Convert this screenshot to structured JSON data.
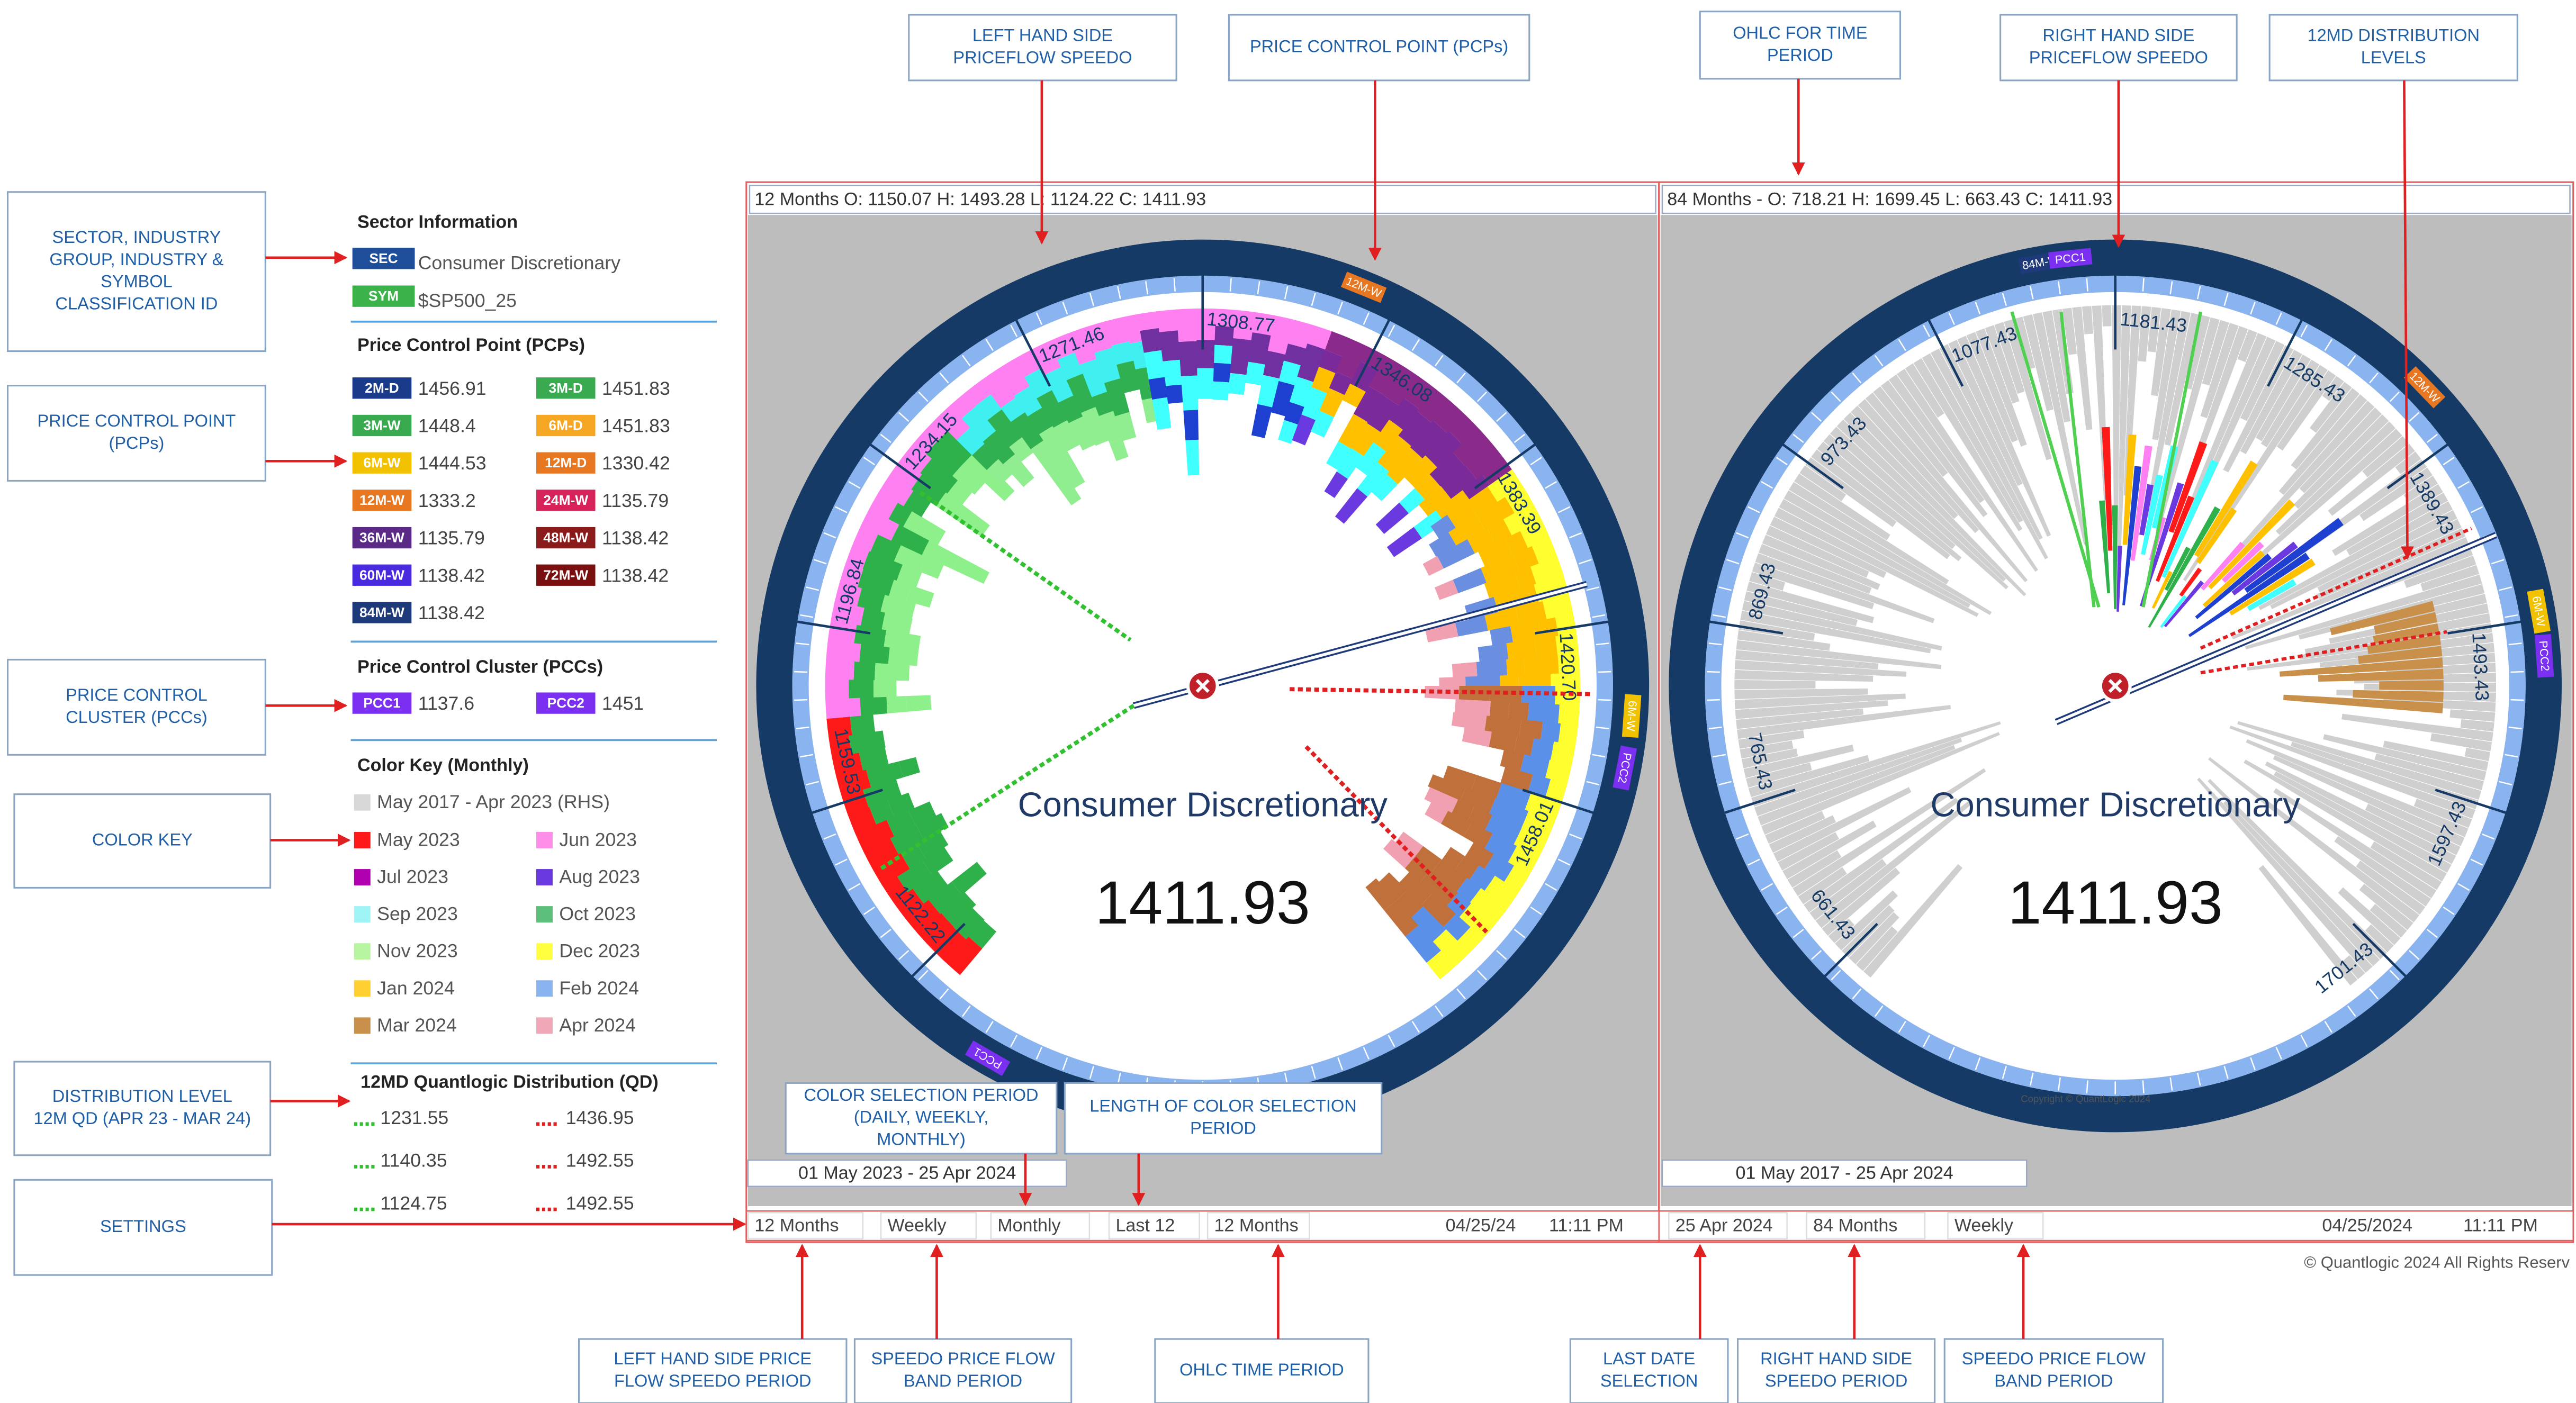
{
  "callouts": [
    {
      "lines": [
        "LEFT HAND SIDE",
        "PRICEFLOW SPEEDO"
      ]
    },
    {
      "lines": [
        "PRICE CONTROL POINT (PCPs)"
      ]
    },
    {
      "lines": [
        "OHLC FOR TIME",
        "PERIOD"
      ]
    },
    {
      "lines": [
        "RIGHT HAND SIDE",
        "PRICEFLOW SPEEDO"
      ]
    },
    {
      "lines": [
        "12MD DISTRIBUTION",
        "LEVELS"
      ]
    },
    {
      "lines": [
        "SECTOR,  INDUSTRY",
        "GROUP, INDUSTRY &",
        "SYMBOL",
        "CLASSIFICATION ID"
      ]
    },
    {
      "lines": [
        "PRICE CONTROL POINT",
        "(PCPs)"
      ]
    },
    {
      "lines": [
        "PRICE CONTROL",
        "CLUSTER (PCCs)"
      ]
    },
    {
      "lines": [
        "COLOR KEY"
      ]
    },
    {
      "lines": [
        "DISTRIBUTION LEVEL",
        "12M QD (APR 23 - MAR 24)"
      ]
    },
    {
      "lines": [
        "SETTINGS"
      ]
    },
    {
      "lines": [
        "COLOR SELECTION PERIOD",
        "(DAILY, WEEKLY,",
        "MONTHLY)"
      ]
    },
    {
      "lines": [
        "LENGTH OF COLOR SELECTION",
        "PERIOD"
      ]
    },
    {
      "lines": [
        "LEFT HAND SIDE PRICE",
        "FLOW SPEEDO PERIOD"
      ]
    },
    {
      "lines": [
        "SPEEDO PRICE FLOW",
        "BAND PERIOD"
      ]
    },
    {
      "lines": [
        "OHLC TIME PERIOD"
      ]
    },
    {
      "lines": [
        "LAST DATE",
        "SELECTION"
      ]
    },
    {
      "lines": [
        "RIGHT HAND SIDE",
        "SPEEDO PERIOD"
      ]
    },
    {
      "lines": [
        "SPEEDO PRICE FLOW",
        "BAND PERIOD"
      ]
    }
  ],
  "sidebar": {
    "sector_title": "Sector Information",
    "sector": {
      "badge": "SEC",
      "text": "Consumer Discretionary",
      "color": "#1f4e9a"
    },
    "symbol": {
      "badge": "SYM",
      "text": "$SP500_25",
      "color": "#3cb34a"
    },
    "pcp_title": "Price Control Point (PCPs)",
    "pcps": [
      {
        "label": "2M-D",
        "value": 1456.91,
        "color": "#1a3a8a"
      },
      {
        "label": "3M-D",
        "value": 1451.83,
        "color": "#3aaa50"
      },
      {
        "label": "3M-W",
        "value": 1448.4,
        "color": "#3aaa50"
      },
      {
        "label": "6M-D",
        "value": 1451.83,
        "color": "#f5a623"
      },
      {
        "label": "6M-W",
        "value": 1444.53,
        "color": "#f2c200"
      },
      {
        "label": "12M-D",
        "value": 1330.42,
        "color": "#e87722"
      },
      {
        "label": "12M-W",
        "value": 1333.2,
        "color": "#e87722"
      },
      {
        "label": "24M-W",
        "value": 1135.79,
        "color": "#d6235a"
      },
      {
        "label": "36M-W",
        "value": 1135.79,
        "color": "#5b2a86"
      },
      {
        "label": "48M-W",
        "value": 1138.42,
        "color": "#8b1a1a"
      },
      {
        "label": "60M-W",
        "value": 1138.42,
        "color": "#4a2adf"
      },
      {
        "label": "72M-W",
        "value": 1138.42,
        "color": "#7a0f0f"
      },
      {
        "label": "84M-W",
        "value": 1138.42,
        "color": "#1f3a7a"
      }
    ],
    "pcc_title": "Price Control Cluster (PCCs)",
    "pccs": [
      {
        "label": "PCC1",
        "value": 1137.6,
        "color": "#7b2ff0"
      },
      {
        "label": "PCC2",
        "value": 1451,
        "color": "#7b2ff0"
      }
    ],
    "color_key_title": "Color Key (Monthly)",
    "color_key_all": {
      "label": "May 2017 - Apr 2023 (RHS)",
      "color": "#d8d8d8"
    },
    "color_key": [
      {
        "label": "May 2023",
        "color": "#ff1a1a"
      },
      {
        "label": "Jun 2023",
        "color": "#ff8ee8"
      },
      {
        "label": "Jul 2023",
        "color": "#b000b0"
      },
      {
        "label": "Aug 2023",
        "color": "#6a3ae0"
      },
      {
        "label": "Sep 2023",
        "color": "#9ff5f5"
      },
      {
        "label": "Oct 2023",
        "color": "#5cbf7a"
      },
      {
        "label": "Nov 2023",
        "color": "#b7f5a0"
      },
      {
        "label": "Dec 2023",
        "color": "#ffff40"
      },
      {
        "label": "Jan 2024",
        "color": "#ffd030"
      },
      {
        "label": "Feb 2024",
        "color": "#8ab4f0"
      },
      {
        "label": "Mar 2024",
        "color": "#c8904a"
      },
      {
        "label": "Apr 2024",
        "color": "#f0a8b8"
      }
    ],
    "qd_title": "12MD Quantlogic Distribution (QD)",
    "qd_green": [
      1231.55,
      1140.35,
      1124.75
    ],
    "qd_red": [
      1436.95,
      1492.55,
      1492.55
    ]
  },
  "left_panel": {
    "ohlc": "12 Months O: 1150.07 H: 1493.28 L: 1124.22 C: 1411.93",
    "dial_labels": [
      "1122.22",
      "1159.53",
      "1196.84",
      "1234.15",
      "1271.46",
      "1308.77",
      "1346.08",
      "1383.39",
      "1420.70",
      "1458.01"
    ],
    "rim_tags": [
      {
        "label": "12M-W",
        "color": "#e87722"
      },
      {
        "label": "6M-W",
        "color": "#f2c200"
      },
      {
        "label": "PCC2",
        "color": "#7b2ff0"
      },
      {
        "label": "PCC1",
        "color": "#7b2ff0"
      }
    ],
    "name": "Consumer Discretionary",
    "price": "1411.93",
    "range": "01 May 2023 - 25 Apr 2024",
    "settings": [
      "12 Months",
      "Weekly",
      "Monthly",
      "Last 12",
      "12 Months"
    ],
    "date": "04/25/24",
    "time": "11:11 PM"
  },
  "right_panel": {
    "ohlc": "84 Months - O: 718.21 H: 1699.45 L: 663.43 C: 1411.93",
    "dial_labels": [
      "661.43",
      "765.43",
      "869.43",
      "973.43",
      "1077.43",
      "1181.43",
      "1285.43",
      "1389.43",
      "1493.43",
      "1597.43",
      "1701.43"
    ],
    "rim_tags": [
      {
        "label": "84M-W",
        "color": "#1f3a7a"
      },
      {
        "label": "PCC1",
        "color": "#7b2ff0"
      },
      {
        "label": "12M-W",
        "color": "#e87722"
      },
      {
        "label": "6M-W",
        "color": "#f2c200"
      },
      {
        "label": "PCC2",
        "color": "#7b2ff0"
      }
    ],
    "name": "Consumer Discretionary",
    "price": "1411.93",
    "copyright": "Copyright © QuantLogic 2024",
    "range": "01 May 2017 - 25 Apr 2024",
    "settings": [
      "25 Apr 2024",
      "84 Months",
      "Weekly"
    ],
    "date": "04/25/2024",
    "time": "11:11 PM"
  },
  "footer": "© Quantlogic 2024  All Rights Reserv"
}
